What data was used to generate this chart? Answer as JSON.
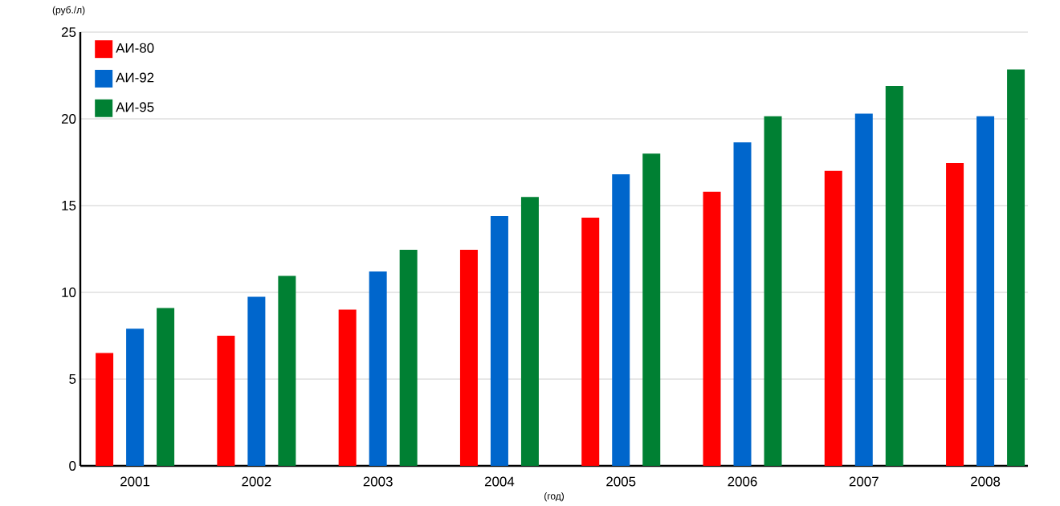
{
  "chart_data": {
    "type": "bar",
    "xlabel": "(год)",
    "ylabel": "(руб./л)",
    "categories": [
      "2001",
      "2002",
      "2003",
      "2004",
      "2005",
      "2006",
      "2007",
      "2008"
    ],
    "series": [
      {
        "name": "АИ-80",
        "color": "#ff0000",
        "values": [
          6.5,
          7.5,
          9.0,
          12.45,
          14.3,
          15.8,
          17.0,
          17.45
        ]
      },
      {
        "name": "АИ-92",
        "color": "#0066cc",
        "values": [
          7.9,
          9.75,
          11.2,
          14.4,
          16.8,
          18.65,
          20.3,
          20.15
        ]
      },
      {
        "name": "АИ-95",
        "color": "#008033",
        "values": [
          9.1,
          10.95,
          12.45,
          15.5,
          18.0,
          20.15,
          21.9,
          22.85
        ]
      }
    ],
    "ylim": [
      0,
      25
    ],
    "yticks": [
      0,
      5,
      10,
      15,
      20,
      25
    ],
    "grid": "y",
    "legend": "top left"
  }
}
